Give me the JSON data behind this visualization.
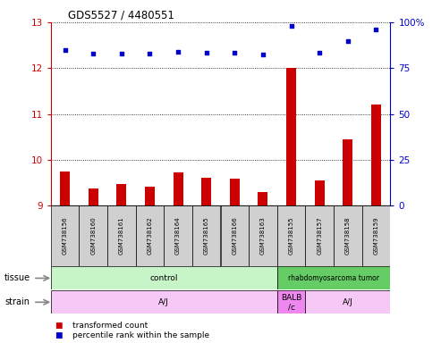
{
  "title": "GDS5527 / 4480551",
  "samples": [
    "GSM738156",
    "GSM738160",
    "GSM738161",
    "GSM738162",
    "GSM738164",
    "GSM738165",
    "GSM738166",
    "GSM738163",
    "GSM738155",
    "GSM738157",
    "GSM738158",
    "GSM738159"
  ],
  "transformed_count": [
    9.75,
    9.38,
    9.48,
    9.42,
    9.72,
    9.62,
    9.6,
    9.3,
    12.0,
    9.55,
    10.45,
    11.2
  ],
  "percentile_rank": [
    85,
    83,
    83,
    83,
    84,
    83.5,
    83.5,
    82.5,
    98,
    83.5,
    90,
    96
  ],
  "bar_color": "#cc0000",
  "dot_color": "#0000cc",
  "ylim_left": [
    9,
    13
  ],
  "ylim_right": [
    0,
    100
  ],
  "yticks_left": [
    9,
    10,
    11,
    12,
    13
  ],
  "yticks_right": [
    0,
    25,
    50,
    75,
    100
  ],
  "ytick_labels_right": [
    "0",
    "25",
    "50",
    "75",
    "100%"
  ],
  "tissue_labels": [
    {
      "label": "control",
      "start": 0,
      "end": 8,
      "color": "#c8f5c8"
    },
    {
      "label": "rhabdomyosarcoma tumor",
      "start": 8,
      "end": 12,
      "color": "#66cc66"
    }
  ],
  "strain_labels": [
    {
      "label": "A/J",
      "start": 0,
      "end": 8,
      "color": "#f5c8f5"
    },
    {
      "label": "BALB\n/c",
      "start": 8,
      "end": 9,
      "color": "#ee88ee"
    },
    {
      "label": "A/J",
      "start": 9,
      "end": 12,
      "color": "#f5c8f5"
    }
  ],
  "legend_bar_label": "transformed count",
  "legend_dot_label": "percentile rank within the sample",
  "bar_color_left": "#cc0000",
  "tick_color_right": "#0000cc",
  "bg_color": "#ffffff",
  "sample_box_color": "#d0d0d0",
  "left_label_color": "#888888",
  "arrow_color": "#888888",
  "bar_width": 0.35
}
